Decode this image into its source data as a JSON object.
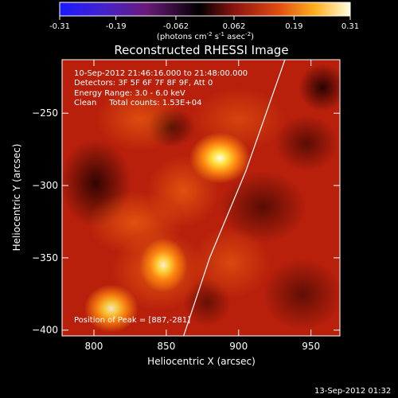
{
  "chart_data": {
    "type": "heatmap",
    "title": "Reconstructed RHESSI Image",
    "xlabel": "Heliocentric X (arcsec)",
    "ylabel": "Heliocentric Y (arcsec)",
    "xlim": [
      778,
      970
    ],
    "ylim": [
      -404,
      -213
    ],
    "xticks": [
      800,
      850,
      900,
      950
    ],
    "yticks": [
      -250,
      -300,
      -350,
      -400
    ],
    "colorbar": {
      "min": -0.31,
      "max": 0.31,
      "ticks": [
        "-0.31",
        "-0.19",
        "-0.062",
        "0.062",
        "0.19",
        "0.31"
      ],
      "unit_prefix": "(photons cm",
      "unit_exp1": "-2",
      "unit_mid": " s",
      "unit_exp2": "-1",
      "unit_mid2": " asec",
      "unit_exp3": "-2",
      "unit_suffix": ")"
    },
    "annotations": {
      "time_range": "10-Sep-2012 21:46:16.000 to 21:48:00.000",
      "detectors": "Detectors: 3F 5F 6F 7F 8F 9F, Att 0",
      "energy": "Energy Range: 3.0 - 6.0 keV",
      "method": "Clean     Total counts: 1.53E+04",
      "peak": "Position of Peak = [887,-281]"
    },
    "sources": [
      {
        "x": 887,
        "y": -281,
        "peak": 0.31
      },
      {
        "x": 848,
        "y": -355,
        "peak": 0.24
      },
      {
        "x": 812,
        "y": -385,
        "peak": 0.22
      }
    ],
    "limb_points": [
      [
        932,
        -213
      ],
      [
        905,
        -290
      ],
      [
        880,
        -350
      ],
      [
        862,
        -404
      ]
    ]
  },
  "footer": {
    "timestamp": "13-Sep-2012 01:32"
  }
}
